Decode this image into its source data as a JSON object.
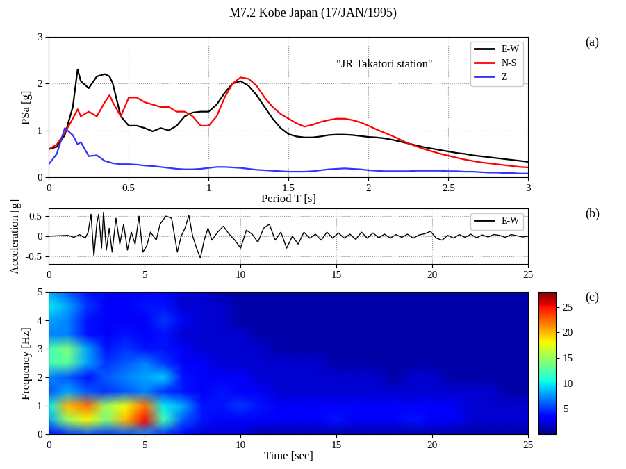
{
  "title": "M7.2 Kobe Japan (17/JAN/1995)",
  "chart_data": [
    {
      "type": "line",
      "panel_label": "(a)",
      "xlabel": "Period T [s]",
      "ylabel": "PSa [g]",
      "annotation": "\"JR Takatori station\"",
      "xlim": [
        0,
        3
      ],
      "xticks": [
        0,
        0.5,
        1,
        1.5,
        2,
        2.5,
        3
      ],
      "ylim": [
        0,
        3
      ],
      "yticks": [
        0,
        1,
        2,
        3
      ],
      "grid": true,
      "legend": "upper right",
      "x": [
        0,
        0.05,
        0.1,
        0.15,
        0.18,
        0.2,
        0.25,
        0.3,
        0.35,
        0.38,
        0.4,
        0.45,
        0.5,
        0.55,
        0.6,
        0.65,
        0.7,
        0.75,
        0.8,
        0.85,
        0.9,
        0.95,
        1.0,
        1.05,
        1.1,
        1.15,
        1.2,
        1.25,
        1.3,
        1.35,
        1.4,
        1.45,
        1.5,
        1.55,
        1.6,
        1.65,
        1.7,
        1.75,
        1.8,
        1.85,
        1.9,
        1.95,
        2.0,
        2.05,
        2.1,
        2.15,
        2.2,
        2.25,
        2.3,
        2.35,
        2.4,
        2.45,
        2.5,
        2.55,
        2.6,
        2.65,
        2.7,
        2.75,
        2.8,
        2.85,
        2.9,
        2.95,
        3.0
      ],
      "series": [
        {
          "name": "E-W",
          "color": "#000000",
          "values": [
            0.6,
            0.65,
            0.9,
            1.5,
            2.3,
            2.05,
            1.9,
            2.15,
            2.2,
            2.15,
            2.0,
            1.3,
            1.1,
            1.1,
            1.05,
            0.98,
            1.05,
            1.0,
            1.1,
            1.3,
            1.38,
            1.4,
            1.4,
            1.55,
            1.8,
            2.0,
            2.05,
            1.95,
            1.75,
            1.5,
            1.25,
            1.05,
            0.92,
            0.87,
            0.85,
            0.85,
            0.87,
            0.9,
            0.91,
            0.91,
            0.9,
            0.88,
            0.86,
            0.85,
            0.83,
            0.8,
            0.76,
            0.72,
            0.68,
            0.64,
            0.61,
            0.58,
            0.55,
            0.52,
            0.5,
            0.47,
            0.45,
            0.43,
            0.41,
            0.39,
            0.37,
            0.35,
            0.33
          ]
        },
        {
          "name": "N-S",
          "color": "#ff0000",
          "values": [
            0.6,
            0.7,
            0.95,
            1.25,
            1.45,
            1.3,
            1.4,
            1.3,
            1.6,
            1.75,
            1.6,
            1.3,
            1.7,
            1.7,
            1.6,
            1.55,
            1.5,
            1.5,
            1.4,
            1.4,
            1.3,
            1.1,
            1.1,
            1.3,
            1.7,
            2.0,
            2.13,
            2.1,
            1.95,
            1.7,
            1.5,
            1.35,
            1.25,
            1.15,
            1.08,
            1.12,
            1.18,
            1.22,
            1.25,
            1.25,
            1.22,
            1.17,
            1.1,
            1.02,
            0.95,
            0.88,
            0.8,
            0.72,
            0.66,
            0.6,
            0.55,
            0.5,
            0.46,
            0.42,
            0.38,
            0.35,
            0.32,
            0.3,
            0.28,
            0.26,
            0.24,
            0.22,
            0.21
          ]
        },
        {
          "name": "Z",
          "color": "#3333ff",
          "values": [
            0.28,
            0.5,
            1.05,
            0.9,
            0.7,
            0.75,
            0.45,
            0.47,
            0.35,
            0.32,
            0.3,
            0.28,
            0.28,
            0.27,
            0.25,
            0.24,
            0.22,
            0.2,
            0.18,
            0.17,
            0.17,
            0.18,
            0.2,
            0.22,
            0.22,
            0.21,
            0.2,
            0.18,
            0.16,
            0.15,
            0.14,
            0.13,
            0.12,
            0.12,
            0.12,
            0.13,
            0.15,
            0.17,
            0.18,
            0.19,
            0.18,
            0.17,
            0.15,
            0.14,
            0.13,
            0.13,
            0.13,
            0.13,
            0.14,
            0.14,
            0.14,
            0.14,
            0.13,
            0.13,
            0.12,
            0.12,
            0.11,
            0.1,
            0.1,
            0.09,
            0.09,
            0.08,
            0.08
          ]
        }
      ]
    },
    {
      "type": "line",
      "panel_label": "(b)",
      "ylabel": "Acceleration [g]",
      "xlim": [
        0,
        25
      ],
      "xticks": [
        0,
        5,
        10,
        15,
        20,
        25
      ],
      "ylim": [
        -0.7,
        0.7
      ],
      "yticks": [
        -0.5,
        0,
        0.5
      ],
      "grid": true,
      "legend": "upper right",
      "x": [
        0,
        0.5,
        1.0,
        1.3,
        1.6,
        1.9,
        2.05,
        2.2,
        2.35,
        2.5,
        2.6,
        2.75,
        2.85,
        3.0,
        3.15,
        3.3,
        3.5,
        3.7,
        3.9,
        4.1,
        4.3,
        4.5,
        4.7,
        4.9,
        5.1,
        5.3,
        5.6,
        5.8,
        6.1,
        6.4,
        6.7,
        6.9,
        7.1,
        7.3,
        7.5,
        7.7,
        7.9,
        8.1,
        8.3,
        8.5,
        8.8,
        9.1,
        9.4,
        9.7,
        10.0,
        10.3,
        10.6,
        10.9,
        11.2,
        11.5,
        11.8,
        12.1,
        12.4,
        12.7,
        13.0,
        13.3,
        13.6,
        13.9,
        14.2,
        14.5,
        14.8,
        15.1,
        15.4,
        15.7,
        16.0,
        16.3,
        16.6,
        16.9,
        17.2,
        17.5,
        17.8,
        18.1,
        18.4,
        18.7,
        19.0,
        19.3,
        19.6,
        19.9,
        20.2,
        20.5,
        20.8,
        21.1,
        21.4,
        21.7,
        22.0,
        22.3,
        22.6,
        22.9,
        23.2,
        23.5,
        23.8,
        24.1,
        24.4,
        24.7,
        25.0
      ],
      "series": [
        {
          "name": "E-W",
          "color": "#000000",
          "values": [
            0,
            0.01,
            0.02,
            -0.03,
            0.04,
            -0.05,
            0.1,
            0.55,
            -0.5,
            0.3,
            0.55,
            -0.3,
            0.6,
            -0.35,
            0.2,
            -0.4,
            0.45,
            -0.2,
            0.3,
            -0.35,
            0.1,
            -0.2,
            0.5,
            -0.4,
            -0.25,
            0.1,
            -0.1,
            0.3,
            0.5,
            0.45,
            -0.4,
            0.0,
            0.2,
            0.52,
            0.0,
            -0.3,
            -0.55,
            -0.1,
            0.2,
            -0.1,
            0.1,
            0.25,
            0.05,
            -0.1,
            -0.3,
            0.15,
            0.05,
            -0.15,
            0.2,
            0.3,
            -0.1,
            0.1,
            -0.3,
            0.0,
            -0.2,
            0.1,
            -0.05,
            0.05,
            -0.1,
            0.1,
            -0.05,
            0.08,
            -0.05,
            0.05,
            -0.08,
            0.1,
            -0.05,
            0.08,
            -0.04,
            0.05,
            -0.05,
            0.04,
            -0.03,
            0.05,
            -0.05,
            0.03,
            0.06,
            0.12,
            -0.05,
            -0.1,
            0.02,
            -0.05,
            0.04,
            -0.03,
            0.05,
            -0.04,
            0.03,
            -0.02,
            0.04,
            0.02,
            -0.03,
            0.04,
            0.01,
            -0.02,
            0.0
          ]
        }
      ]
    },
    {
      "type": "heatmap",
      "panel_label": "(c)",
      "xlabel": "Time [sec]",
      "ylabel": "Frequency [Hz]",
      "xlim": [
        0,
        25
      ],
      "xticks": [
        0,
        5,
        10,
        15,
        20,
        25
      ],
      "ylim": [
        0,
        5
      ],
      "yticks": [
        0,
        1,
        2,
        3,
        4,
        5
      ],
      "x": [
        0,
        1,
        2,
        3,
        4,
        5,
        6,
        7,
        8,
        9,
        10,
        11,
        12,
        13,
        14,
        15,
        16,
        17,
        18,
        19,
        20,
        21,
        22,
        23,
        24,
        25
      ],
      "y": [
        0,
        0.5,
        1.0,
        1.5,
        2.0,
        2.5,
        3.0,
        3.5,
        4.0,
        4.5,
        5.0
      ],
      "cells": [
        [
          3,
          5,
          6,
          5,
          6,
          7,
          5,
          3,
          2,
          2,
          2,
          1,
          1,
          1,
          1,
          1,
          1,
          1,
          1,
          1,
          1,
          1,
          1,
          1,
          1,
          1
        ],
        [
          8,
          15,
          18,
          14,
          20,
          25,
          12,
          6,
          4,
          3,
          3,
          3,
          3,
          3,
          3,
          4,
          3,
          3,
          3,
          4,
          3,
          3,
          2,
          2,
          2,
          2
        ],
        [
          10,
          20,
          22,
          15,
          18,
          22,
          10,
          8,
          4,
          4,
          5,
          4,
          3,
          3,
          3,
          3,
          3,
          3,
          3,
          3,
          3,
          3,
          2,
          2,
          2,
          2
        ],
        [
          6,
          8,
          6,
          5,
          6,
          7,
          5,
          4,
          3,
          4,
          3,
          3,
          2,
          2,
          2,
          2,
          2,
          2,
          2,
          2,
          2,
          2,
          2,
          2,
          1,
          1
        ],
        [
          7,
          6,
          4,
          6,
          7,
          8,
          9,
          4,
          3,
          3,
          3,
          2,
          2,
          2,
          2,
          2,
          2,
          2,
          1,
          2,
          2,
          1,
          1,
          1,
          1,
          1
        ],
        [
          12,
          13,
          8,
          5,
          6,
          7,
          5,
          3,
          3,
          2,
          2,
          2,
          2,
          2,
          2,
          1,
          1,
          1,
          1,
          1,
          1,
          1,
          1,
          1,
          1,
          1
        ],
        [
          12,
          14,
          8,
          4,
          5,
          4,
          4,
          3,
          2,
          2,
          2,
          2,
          1,
          1,
          1,
          1,
          1,
          1,
          1,
          1,
          1,
          1,
          1,
          1,
          1,
          1
        ],
        [
          7,
          7,
          4,
          3,
          4,
          3,
          4,
          2,
          2,
          2,
          2,
          1,
          1,
          1,
          1,
          1,
          1,
          1,
          1,
          1,
          1,
          1,
          1,
          1,
          1,
          1
        ],
        [
          8,
          7,
          4,
          3,
          3,
          3,
          5,
          3,
          2,
          2,
          1,
          1,
          1,
          1,
          1,
          1,
          1,
          1,
          1,
          1,
          1,
          1,
          1,
          1,
          1,
          1
        ],
        [
          10,
          8,
          5,
          3,
          3,
          4,
          4,
          2,
          2,
          2,
          1,
          1,
          1,
          1,
          1,
          1,
          1,
          1,
          1,
          1,
          1,
          1,
          1,
          1,
          1,
          1
        ],
        [
          8,
          6,
          4,
          3,
          3,
          3,
          3,
          2,
          2,
          1,
          1,
          1,
          1,
          1,
          1,
          1,
          1,
          1,
          1,
          1,
          1,
          1,
          1,
          1,
          1,
          1
        ]
      ],
      "colorbar_range": [
        0,
        28
      ],
      "colorbar_ticks": [
        5,
        10,
        15,
        20,
        25
      ]
    }
  ]
}
